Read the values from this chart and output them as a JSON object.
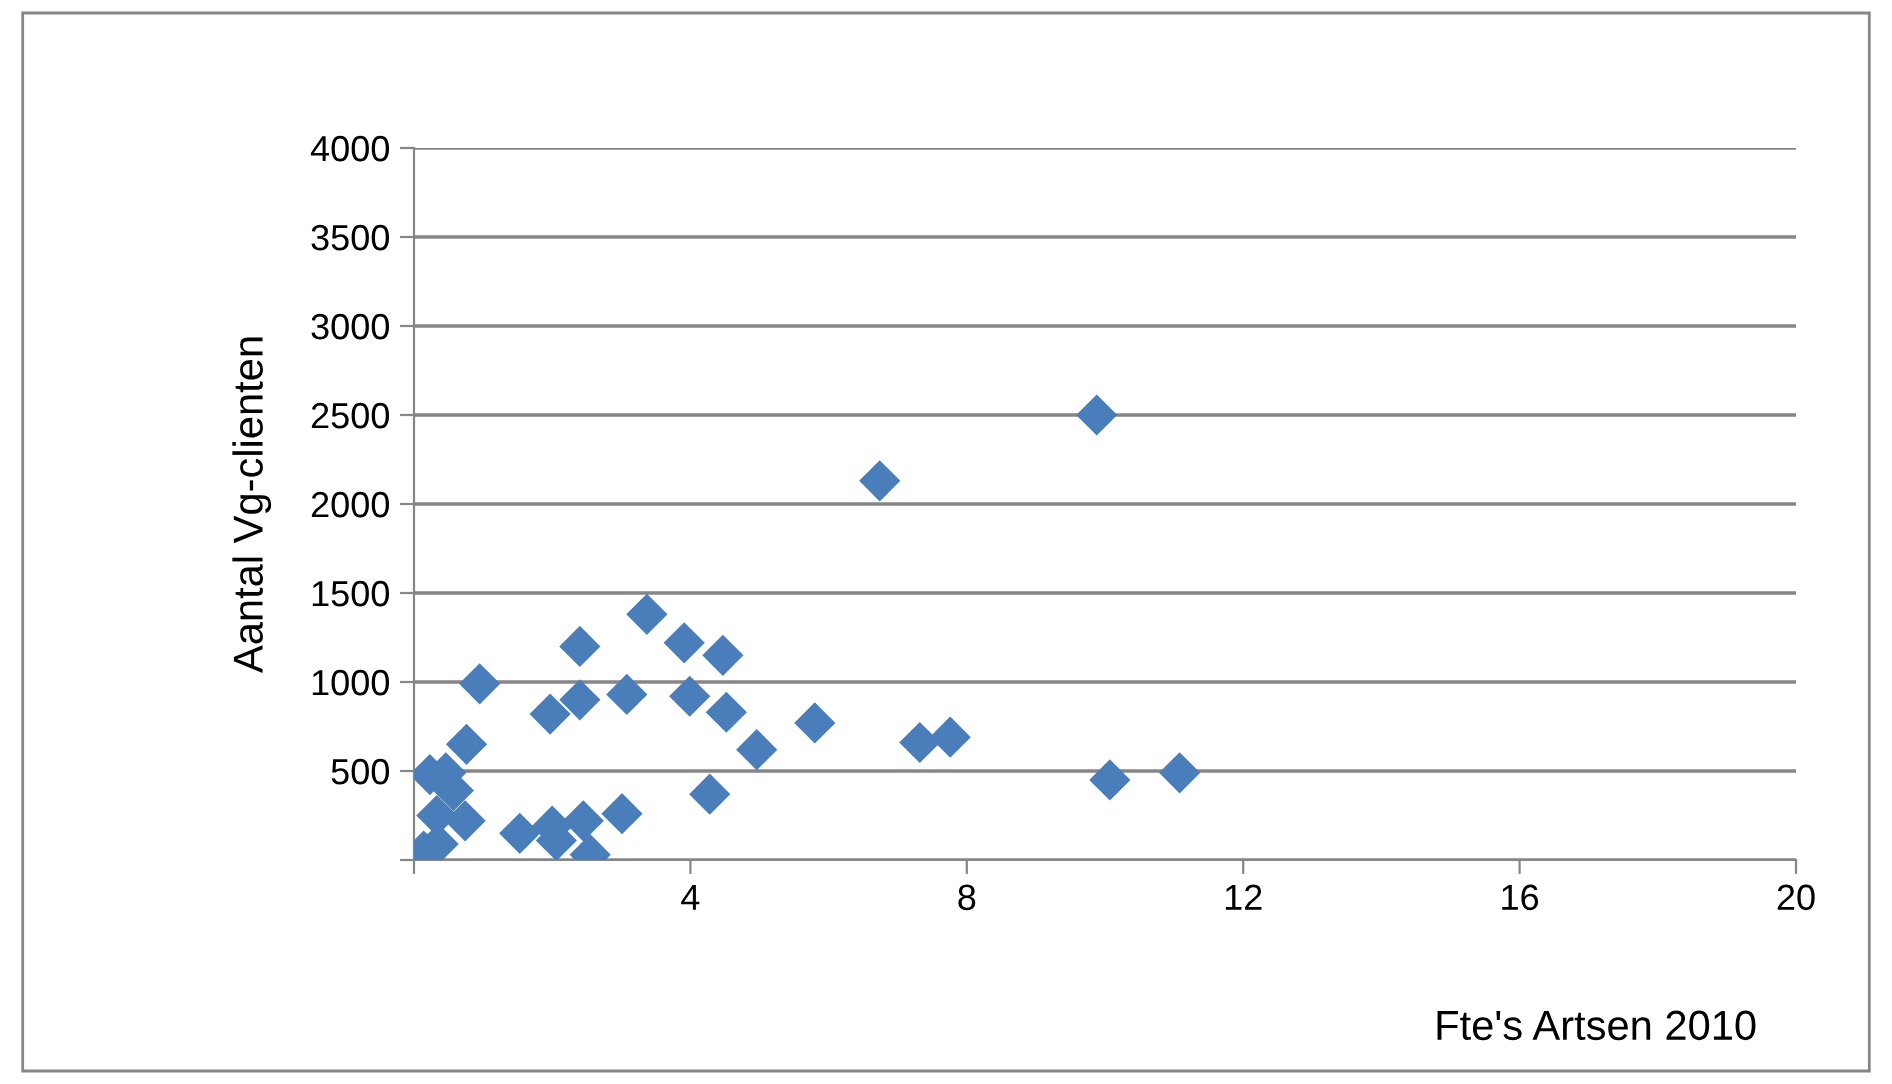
{
  "chart_data": {
    "type": "scatter",
    "xlabel": "Fte's Artsen 2010",
    "ylabel": "Aantal Vg-clienten",
    "marker": "diamond",
    "grid": "y",
    "legend": false,
    "xlim": [
      0,
      20
    ],
    "xticks": [
      {
        "value": 0,
        "label": null
      },
      4,
      8,
      12,
      16,
      20
    ],
    "ylim": [
      0,
      4000
    ],
    "yticks": [
      {
        "value": 0,
        "label": null
      },
      500,
      1000,
      1500,
      2000,
      2500,
      3000,
      3500,
      4000
    ],
    "series": [
      {
        "color": "#4a7ebb",
        "x": [
          0.14,
          0.35,
          0.23,
          0.46,
          0.57,
          0.33,
          0.74,
          0.76,
          0.95,
          1.53,
          1.97,
          2.0,
          2.06,
          2.4,
          2.4,
          2.45,
          2.55,
          3.01,
          3.08,
          3.37,
          3.91,
          3.99,
          4.47,
          4.52,
          4.28,
          4.96,
          5.8,
          6.74,
          9.88,
          7.32,
          7.76,
          10.07,
          11.08
        ],
        "values": [
          50,
          90,
          480,
          490,
          390,
          250,
          220,
          650,
          990,
          150,
          820,
          190,
          110,
          1200,
          900,
          220,
          30,
          260,
          930,
          1380,
          1220,
          920,
          1150,
          830,
          370,
          620,
          770,
          2130,
          2500,
          660,
          690,
          450,
          490
        ]
      }
    ]
  }
}
